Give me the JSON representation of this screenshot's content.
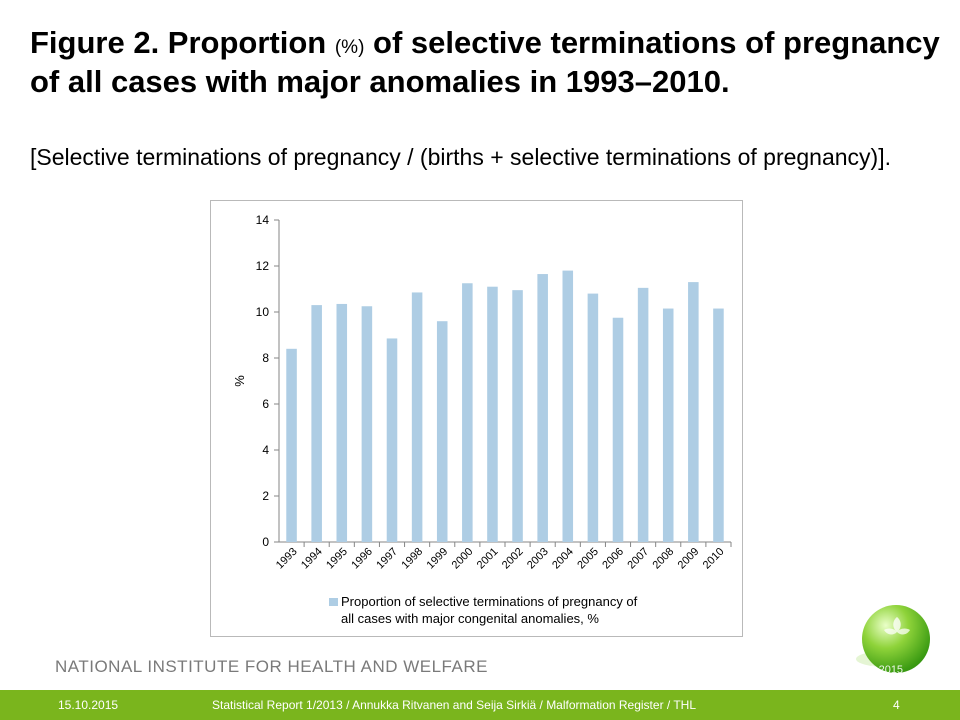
{
  "slide": {
    "title_part1": "Figure 2. Proportion ",
    "title_small": "(%)",
    "title_part2": " of selective terminations of pregnancy of all cases with major anomalies in 1993–2010.",
    "subtitle": "[Selective terminations of pregnancy / (births + selective terminations of pregnancy)].",
    "institute": "NATIONAL INSTITUTE FOR HEALTH AND WELFARE",
    "faint_date": "15.10.2015",
    "footer_date": "15.10.2015",
    "footer_text": "Statistical Report 1/2013 / Annukka Ritvanen and Seija Sirkiä / Malformation Register / THL",
    "page_number": "4",
    "colors": {
      "bar": "#aecde4",
      "footer": "#7ab51d",
      "logo": "#5cb51d"
    }
  },
  "chart_data": {
    "type": "bar",
    "categories": [
      "1993",
      "1994",
      "1995",
      "1996",
      "1997",
      "1998",
      "1999",
      "2000",
      "2001",
      "2002",
      "2003",
      "2004",
      "2005",
      "2006",
      "2007",
      "2008",
      "2009",
      "2010"
    ],
    "series": [
      {
        "name": "Proportion of selective terminations of pregnancy of all cases with major congenital anomalies, %",
        "values": [
          8.4,
          10.3,
          10.35,
          10.25,
          8.85,
          10.85,
          9.6,
          11.25,
          11.1,
          10.95,
          11.65,
          11.8,
          10.8,
          9.75,
          11.05,
          10.15,
          11.3,
          10.15
        ]
      }
    ],
    "xlabel": "",
    "ylabel": "%",
    "ylim": [
      0,
      14
    ],
    "yticks": [
      0,
      2,
      4,
      6,
      8,
      10,
      12,
      14
    ],
    "grid": false,
    "legend_position": "bottom",
    "legend_line1": "Proportion of selective terminations of pregnancy of",
    "legend_line2": "all cases with major congenital anomalies, %"
  }
}
